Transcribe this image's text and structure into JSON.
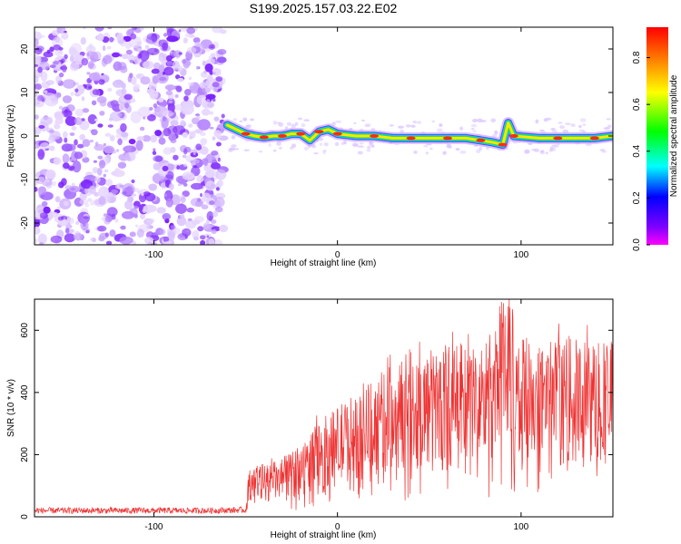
{
  "title": "S199.2025.157.03.22.E02",
  "chart_data": [
    {
      "type": "heatmap",
      "xlabel": "Height of straight line (km)",
      "ylabel": "Frequency (Hz)",
      "xlim": [
        -165,
        150
      ],
      "ylim": [
        -25,
        25
      ],
      "xticks": [
        -100,
        0,
        100
      ],
      "yticks": [
        -20,
        -10,
        0,
        10,
        20
      ],
      "colorbar": {
        "label": "Normalized spectral amplitude",
        "range": [
          0.0,
          0.93
        ],
        "ticks": [
          0.0,
          0.2,
          0.4,
          0.6,
          0.8
        ],
        "colormap": "rainbow (magenta-blue-cyan-green-yellow-red)"
      },
      "noise_region_x": [
        -165,
        -62
      ],
      "signal_ridge": [
        {
          "x": -60,
          "y": 2.5
        },
        {
          "x": -55,
          "y": 1.5
        },
        {
          "x": -50,
          "y": 0.5
        },
        {
          "x": -45,
          "y": 0.0
        },
        {
          "x": -40,
          "y": -0.3
        },
        {
          "x": -35,
          "y": 0.0
        },
        {
          "x": -30,
          "y": 0.0
        },
        {
          "x": -25,
          "y": 0.5
        },
        {
          "x": -20,
          "y": 0.5
        },
        {
          "x": -15,
          "y": -1.0
        },
        {
          "x": -10,
          "y": 1.0
        },
        {
          "x": -5,
          "y": 1.5
        },
        {
          "x": 0,
          "y": 0.5
        },
        {
          "x": 10,
          "y": 0.0
        },
        {
          "x": 20,
          "y": 0.0
        },
        {
          "x": 30,
          "y": -0.5
        },
        {
          "x": 40,
          "y": -0.5
        },
        {
          "x": 50,
          "y": -0.5
        },
        {
          "x": 60,
          "y": -0.5
        },
        {
          "x": 70,
          "y": -0.5
        },
        {
          "x": 78,
          "y": -1.0
        },
        {
          "x": 85,
          "y": -1.5
        },
        {
          "x": 90,
          "y": -2.0
        },
        {
          "x": 93,
          "y": 3.0
        },
        {
          "x": 96,
          "y": 0.0
        },
        {
          "x": 110,
          "y": -0.5
        },
        {
          "x": 120,
          "y": -0.5
        },
        {
          "x": 130,
          "y": -0.5
        },
        {
          "x": 140,
          "y": -0.5
        },
        {
          "x": 150,
          "y": 0.0
        }
      ]
    },
    {
      "type": "line",
      "xlabel": "Height of straight line (km)",
      "ylabel": "SNR (10 * v/v)",
      "xlim": [
        -165,
        150
      ],
      "ylim": [
        0,
        700
      ],
      "xticks": [
        -100,
        0,
        100
      ],
      "yticks": [
        0,
        200,
        400,
        600
      ],
      "color": "#ee3333",
      "envelope": [
        {
          "x": -165,
          "y": 20
        },
        {
          "x": -130,
          "y": 20
        },
        {
          "x": -100,
          "y": 20
        },
        {
          "x": -70,
          "y": 20
        },
        {
          "x": -50,
          "y": 22
        },
        {
          "x": -48,
          "y": 110
        },
        {
          "x": -40,
          "y": 110
        },
        {
          "x": -30,
          "y": 120
        },
        {
          "x": -20,
          "y": 150
        },
        {
          "x": -10,
          "y": 200
        },
        {
          "x": 0,
          "y": 230
        },
        {
          "x": 10,
          "y": 260
        },
        {
          "x": 20,
          "y": 290
        },
        {
          "x": 30,
          "y": 320
        },
        {
          "x": 40,
          "y": 340
        },
        {
          "x": 50,
          "y": 350
        },
        {
          "x": 60,
          "y": 360
        },
        {
          "x": 70,
          "y": 360
        },
        {
          "x": 80,
          "y": 370
        },
        {
          "x": 88,
          "y": 400
        },
        {
          "x": 92,
          "y": 500
        },
        {
          "x": 96,
          "y": 420
        },
        {
          "x": 100,
          "y": 370
        },
        {
          "x": 110,
          "y": 370
        },
        {
          "x": 120,
          "y": 370
        },
        {
          "x": 130,
          "y": 370
        },
        {
          "x": 140,
          "y": 370
        },
        {
          "x": 150,
          "y": 370
        }
      ]
    }
  ]
}
